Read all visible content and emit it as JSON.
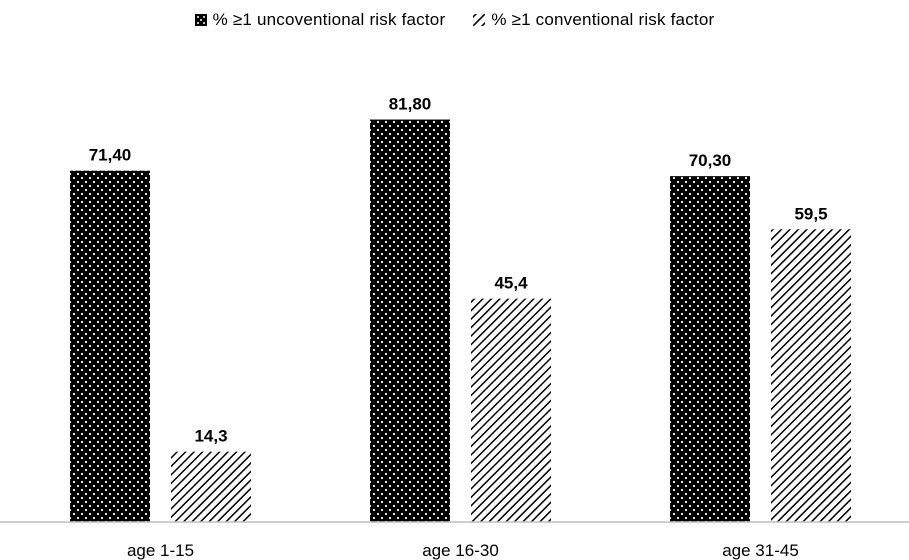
{
  "chart_data": {
    "type": "bar",
    "categories": [
      "age 1-15",
      "age 16-30",
      "age 31-45"
    ],
    "series": [
      {
        "name": "% ≥1 uncoventional risk factor",
        "values": [
          71.4,
          81.8,
          70.3
        ],
        "labels": [
          "71,40",
          "81,80",
          "70,30"
        ],
        "pattern": "dots",
        "color": "#000000"
      },
      {
        "name": "% ≥1 conventional risk factor",
        "values": [
          14.3,
          45.4,
          59.5
        ],
        "labels": [
          "14,3",
          "45,4",
          "59,5"
        ],
        "pattern": "diagonal-hatch",
        "color": "#000000"
      }
    ],
    "title": "",
    "xlabel": "",
    "ylabel": "",
    "ylim": [
      0,
      100
    ],
    "grid": false,
    "legend_position": "top"
  }
}
